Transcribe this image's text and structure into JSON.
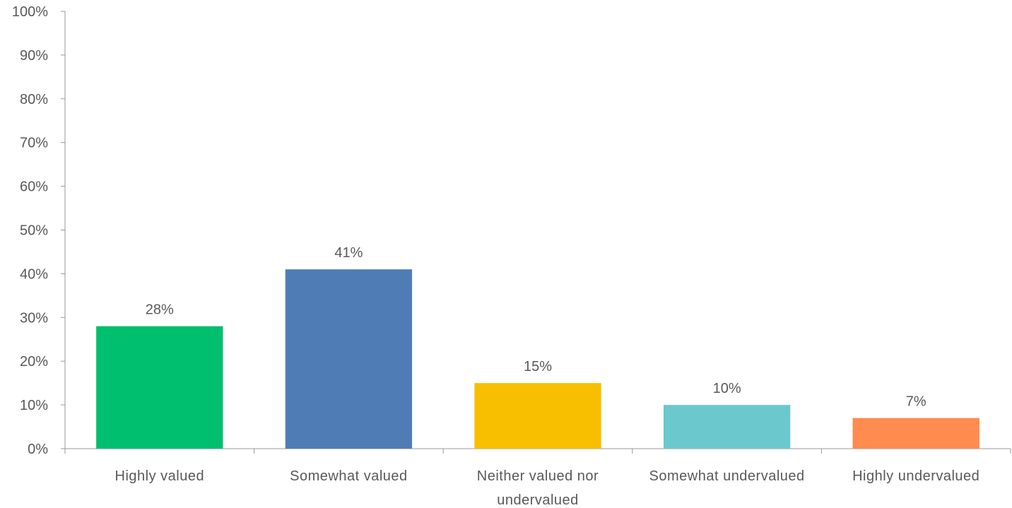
{
  "chart_data": {
    "type": "bar",
    "title": "",
    "xlabel": "",
    "ylabel": "",
    "categories": [
      [
        "Highly valued"
      ],
      [
        "Somewhat valued"
      ],
      [
        "Neither valued nor",
        "undervalued"
      ],
      [
        "Somewhat undervalued"
      ],
      [
        "Highly undervalued"
      ]
    ],
    "values": [
      28,
      41,
      15,
      10,
      7
    ],
    "data_labels": [
      "28%",
      "41%",
      "15%",
      "10%",
      "7%"
    ],
    "colors": [
      "#00BF6F",
      "#507CB6",
      "#F8BE00",
      "#6BC8CD",
      "#FF8B4F"
    ],
    "ylim": [
      0,
      100
    ],
    "yticks": [
      0,
      10,
      20,
      30,
      40,
      50,
      60,
      70,
      80,
      90,
      100
    ],
    "ytick_labels": [
      "0%",
      "10%",
      "20%",
      "30%",
      "40%",
      "50%",
      "60%",
      "70%",
      "80%",
      "90%",
      "100%"
    ],
    "grid": false,
    "legend": "none",
    "axis_color": "#999999",
    "text_color": "#595959"
  }
}
